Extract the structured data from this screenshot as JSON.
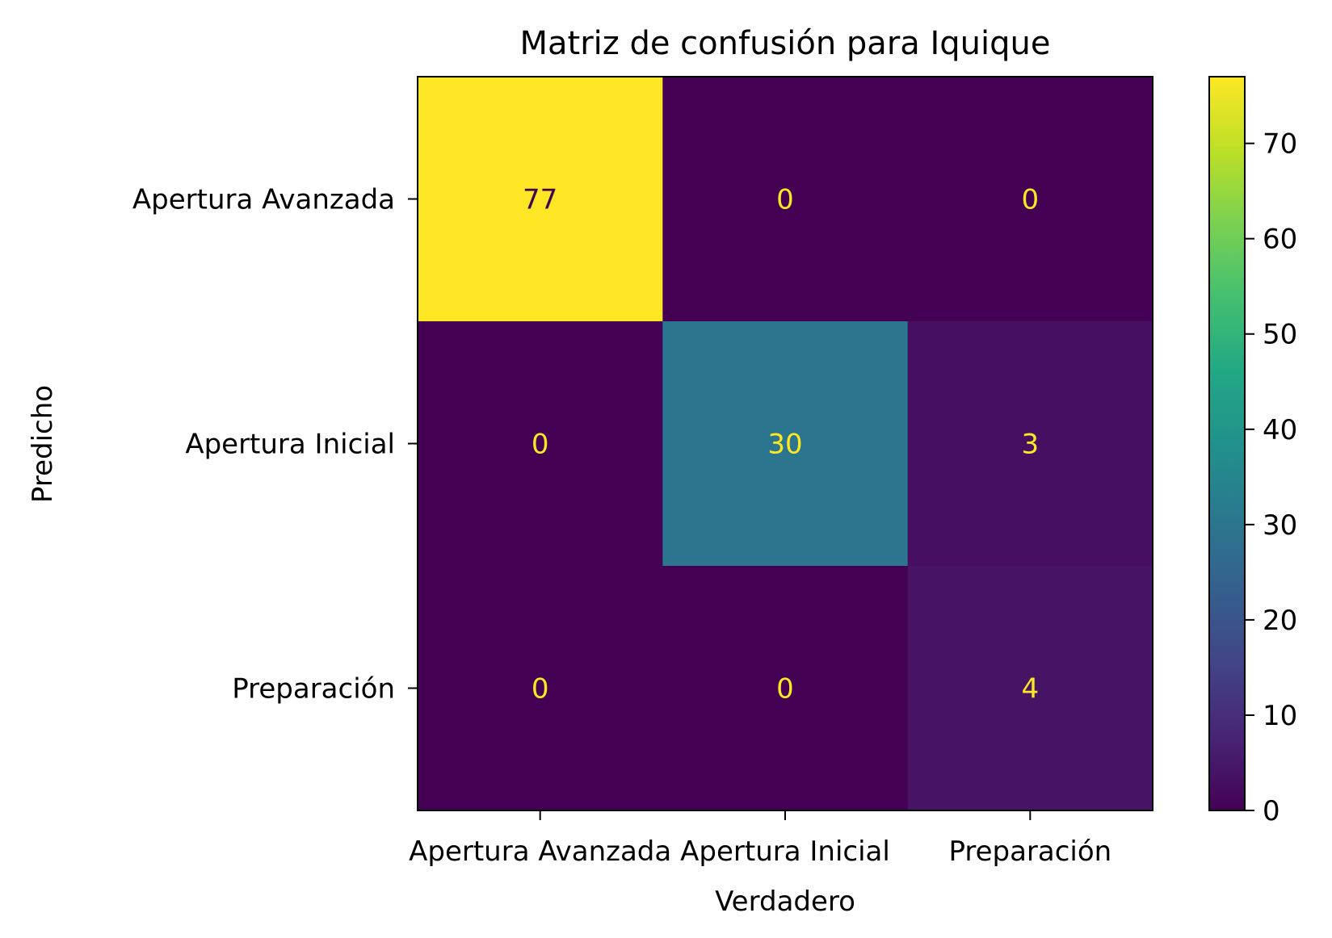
{
  "chart_data": {
    "type": "heatmap",
    "title": "Matriz de confusión para Iquique",
    "xlabel": "Verdadero",
    "ylabel": "Predicho",
    "x_categories": [
      "Apertura Avanzada",
      "Apertura Inicial",
      "Preparación"
    ],
    "y_categories": [
      "Apertura Avanzada",
      "Apertura Inicial",
      "Preparación"
    ],
    "matrix": [
      [
        77,
        0,
        0
      ],
      [
        0,
        30,
        3
      ],
      [
        0,
        0,
        4
      ]
    ],
    "colormap": "viridis",
    "colorbar": {
      "range": [
        0,
        77
      ],
      "ticks": [
        0,
        10,
        20,
        30,
        40,
        50,
        60,
        70
      ]
    },
    "text_colors": {
      "on_dark": "#fde725",
      "on_light": "#440154"
    }
  }
}
